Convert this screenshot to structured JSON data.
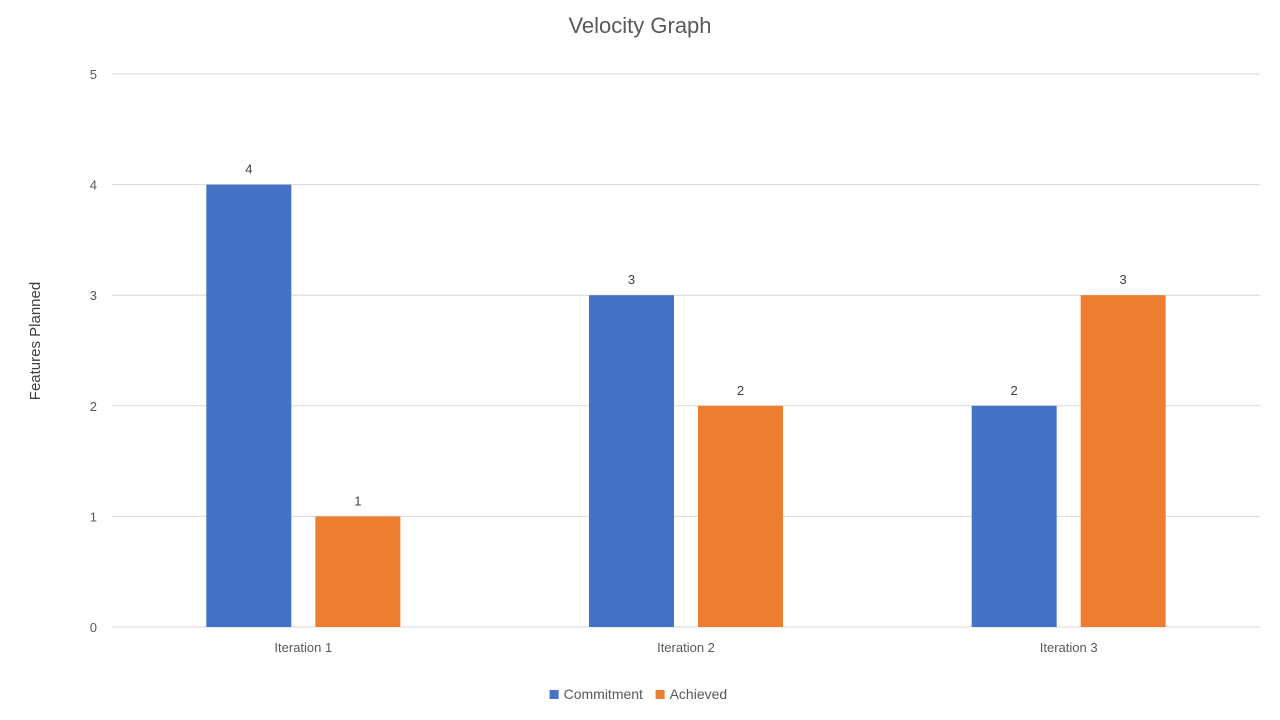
{
  "chart_data": {
    "type": "bar",
    "title": "Velocity Graph",
    "xlabel": "",
    "ylabel": "Features Planned",
    "categories": [
      "Iteration 1",
      "Iteration 2",
      "Iteration 3"
    ],
    "series": [
      {
        "name": "Commitment",
        "color": "#4472C4",
        "values": [
          4,
          3,
          2
        ]
      },
      {
        "name": "Achieved",
        "color": "#ED7D31",
        "values": [
          1,
          2,
          3
        ]
      }
    ],
    "ylim": [
      0,
      5
    ],
    "yticks": [
      0,
      1,
      2,
      3,
      4,
      5
    ],
    "grid": true,
    "data_labels": true,
    "legend_position": "bottom"
  }
}
